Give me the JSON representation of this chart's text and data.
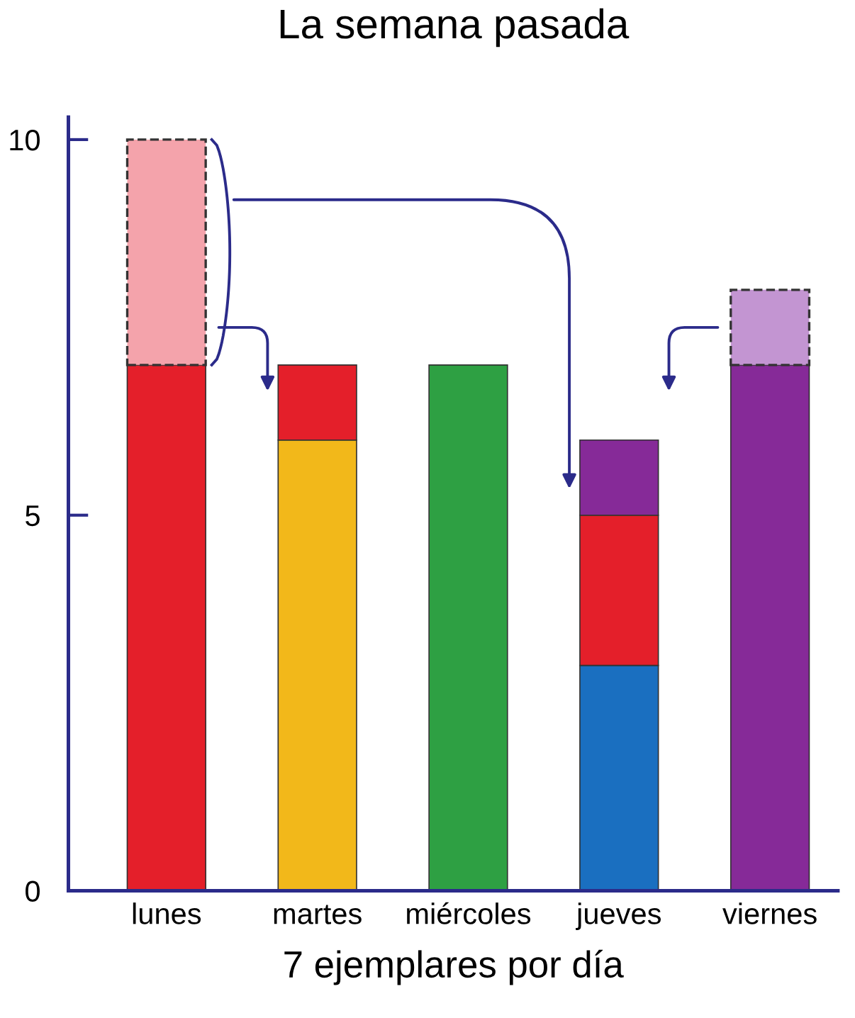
{
  "chart_data": {
    "type": "bar",
    "title": "La semana pasada",
    "xlabel": "7 ejemplares por día",
    "categories": [
      "lunes",
      "martes",
      "miércoles",
      "jueves",
      "viernes"
    ],
    "stacked": true,
    "series": [
      {
        "color": "#1a6fc0",
        "values": [
          0,
          0,
          0,
          3,
          0
        ]
      },
      {
        "color": "#f2b81a",
        "values": [
          0,
          6,
          0,
          0,
          0
        ]
      },
      {
        "color": "#2ea043",
        "values": [
          0,
          0,
          7,
          0,
          0
        ]
      },
      {
        "color": "#e41f2a",
        "values": [
          7,
          1,
          0,
          2,
          0
        ]
      },
      {
        "color": "#862a98",
        "values": [
          0,
          0,
          0,
          1,
          7
        ]
      },
      {
        "color": "#f4a3ab",
        "values": [
          3,
          0,
          0,
          0,
          0
        ],
        "line_style": "dashed"
      },
      {
        "color": "#c395d2",
        "values": [
          0,
          0,
          0,
          0,
          1
        ],
        "line_style": "dashed"
      }
    ],
    "ylim": [
      0,
      10.3
    ],
    "yticks": [
      0,
      5,
      10
    ],
    "grid": false,
    "legend": false
  }
}
